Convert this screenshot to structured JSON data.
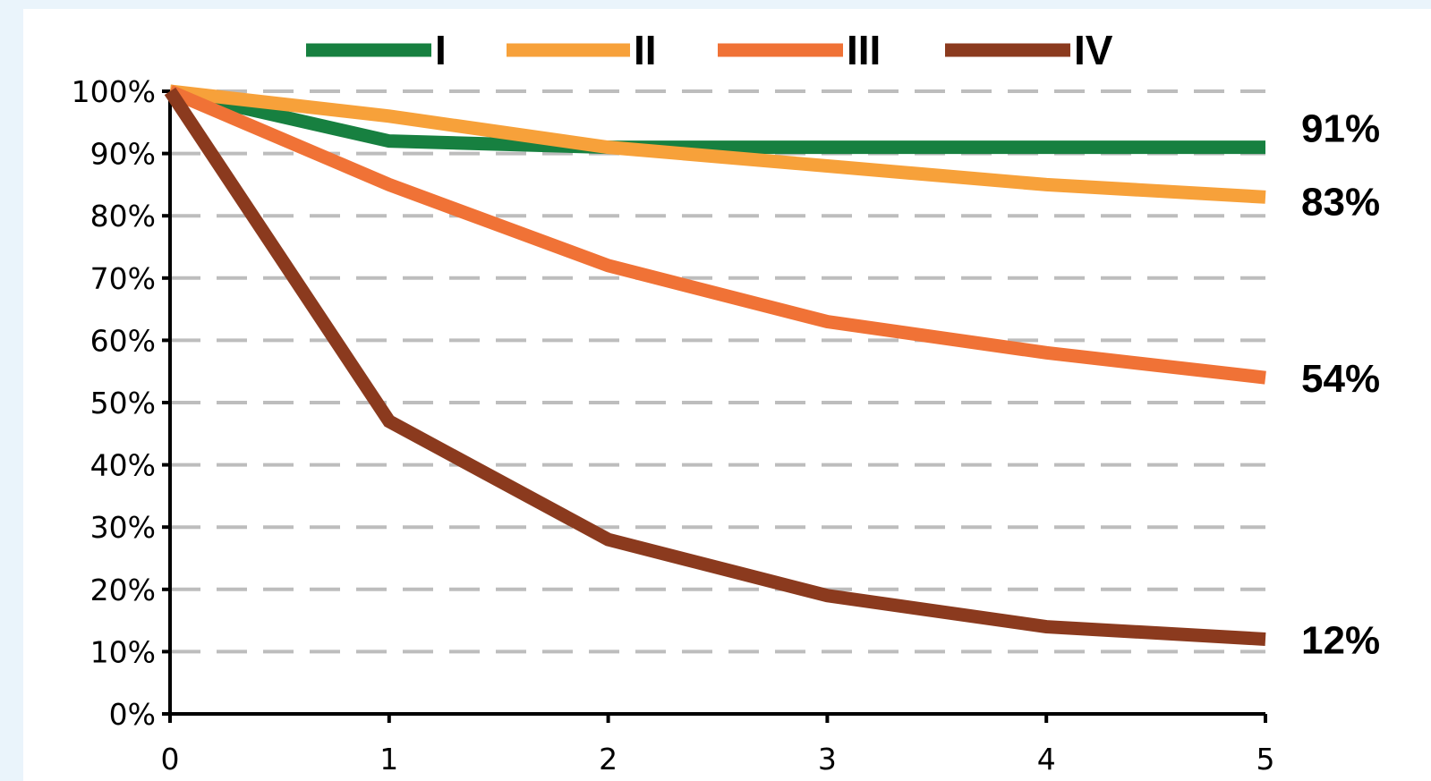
{
  "chart_data": {
    "type": "line",
    "x": [
      0,
      1,
      2,
      3,
      4,
      5
    ],
    "ylim": [
      0,
      100
    ],
    "xlim": [
      0,
      5
    ],
    "y_ticks": [
      "0%",
      "10%",
      "20%",
      "30%",
      "40%",
      "50%",
      "60%",
      "70%",
      "80%",
      "90%",
      "100%"
    ],
    "x_ticks": [
      "0",
      "1",
      "2",
      "3",
      "4",
      "5"
    ],
    "grid": "horizontal-dashed",
    "legend_position": "top",
    "series": [
      {
        "name": "I",
        "color": "#178040",
        "values": [
          100,
          92,
          91,
          91,
          91,
          91
        ],
        "end_label": "91%"
      },
      {
        "name": "II",
        "color": "#f7a13a",
        "values": [
          100,
          96,
          91,
          88,
          85,
          83
        ],
        "end_label": "83%"
      },
      {
        "name": "III",
        "color": "#f07236",
        "values": [
          100,
          85,
          72,
          63,
          58,
          54
        ],
        "end_label": "54%"
      },
      {
        "name": "IV",
        "color": "#8b3a1e",
        "values": [
          100,
          47,
          28,
          19,
          14,
          12
        ],
        "end_label": "12%"
      }
    ]
  }
}
